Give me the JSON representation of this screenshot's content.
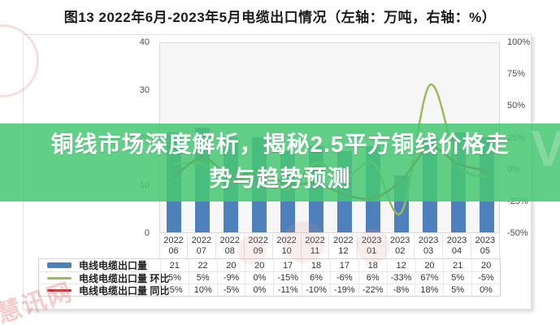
{
  "title": "图13 2022年6月-2023年5月电缆出口情况（左轴：万吨，右轴：%）",
  "overlay": {
    "line1": "铜线市场深度解析，揭秘2.5平方铜线价格走",
    "line2": "势与趋势预测"
  },
  "watermark": {
    "brand": "慧讯网"
  },
  "chart_data": {
    "type": "bar",
    "title": "图13 2022年6月-2023年5月电缆出口情况",
    "left_axis": {
      "label": "万吨",
      "min": 0,
      "max": 40,
      "ticks": [
        "40",
        "30",
        "20",
        "10",
        "0"
      ]
    },
    "right_axis": {
      "label": "%",
      "min": -50,
      "max": 100,
      "ticks": [
        "100%",
        "75%",
        "50%",
        "25%",
        "0%",
        "-25%",
        "-50%"
      ]
    },
    "categories": [
      [
        "2022",
        "06"
      ],
      [
        "2022",
        "07"
      ],
      [
        "2022",
        "08"
      ],
      [
        "2022",
        "09"
      ],
      [
        "2022",
        "10"
      ],
      [
        "2022",
        "11"
      ],
      [
        "2022",
        "12"
      ],
      [
        "2023",
        "01"
      ],
      [
        "2023",
        "02"
      ],
      [
        "2023",
        "03"
      ],
      [
        "2023",
        "04"
      ],
      [
        "2023",
        "05"
      ]
    ],
    "series": [
      {
        "name": "电线电缆出口量",
        "type": "bar",
        "axis": "left",
        "color": "#4e80bc",
        "values": [
          21,
          22,
          20,
          20,
          17,
          18,
          17,
          18,
          12,
          20,
          21,
          20
        ],
        "display": [
          "21",
          "22",
          "20",
          "20",
          "17",
          "18",
          "17",
          "18",
          "12",
          "20",
          "21",
          "20"
        ]
      },
      {
        "name": "电线电缆出口量 环比",
        "type": "line",
        "axis": "right",
        "color": "#9bbb59",
        "values": [
          5,
          5,
          -9,
          0,
          -15,
          6,
          -6,
          6,
          -33,
          67,
          5,
          -5
        ],
        "display": [
          "5%",
          "5%",
          "-9%",
          "0%",
          "-15%",
          "6%",
          "-6%",
          "6%",
          "-33%",
          "67%",
          "5%",
          "-5%"
        ]
      },
      {
        "name": "电线电缆出口量 同比",
        "type": "line",
        "axis": "right",
        "color": "#c0312e",
        "values": [
          -5,
          10,
          -5,
          0,
          -11,
          -10,
          -19,
          -22,
          -8,
          18,
          5,
          0
        ],
        "display": [
          "-5%",
          "10%",
          "-5%",
          "0%",
          "-11%",
          "-10%",
          "-19%",
          "-22%",
          "-8%",
          "18%",
          "5%",
          "0%"
        ]
      }
    ],
    "grid": false,
    "legend_position": "table-left"
  }
}
